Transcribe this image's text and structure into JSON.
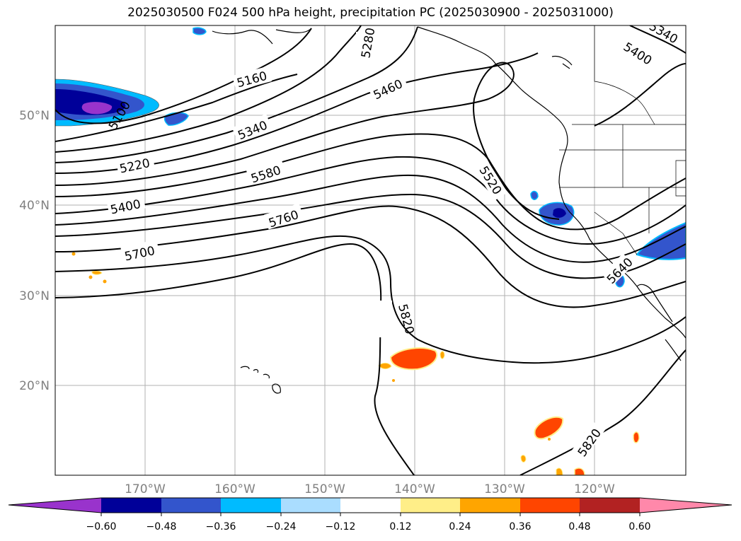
{
  "title": "2025030500 F024 500 hPa height, precipitation PC (2025030900 - 2025031000)",
  "map": {
    "lon_ticks": [
      "170°W",
      "160°W",
      "150°W",
      "140°W",
      "130°W",
      "120°W"
    ],
    "lat_ticks": [
      "50°N",
      "40°N",
      "30°N",
      "20°N"
    ],
    "grid_color": "#b0b0b0",
    "contour_color": "#000000",
    "contour_labels": [
      "5160",
      "5280",
      "5340",
      "5400",
      "5460",
      "5220",
      "5340",
      "5580",
      "5400",
      "5520",
      "5760",
      "5700",
      "5820",
      "5640",
      "5820",
      "5100"
    ]
  },
  "colorbar": {
    "tick_labels": [
      "−0.60",
      "−0.48",
      "−0.36",
      "−0.24",
      "−0.12",
      "0.12",
      "0.24",
      "0.36",
      "0.48",
      "0.60"
    ],
    "colors": [
      "#9933cc",
      "#000099",
      "#3355cc",
      "#00bbff",
      "#aaddff",
      "#ffffff",
      "#ffee88",
      "#ffa500",
      "#ff4500",
      "#b22222",
      "#ff88aa",
      "#ff88aa"
    ]
  }
}
